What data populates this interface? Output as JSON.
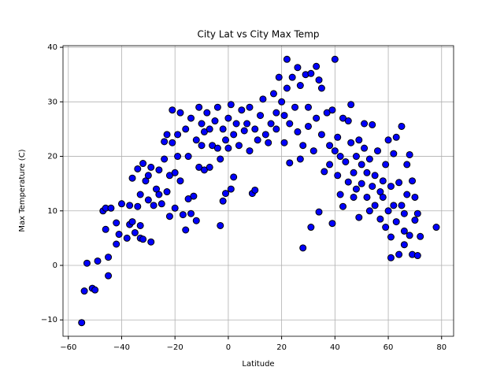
{
  "chart_data": {
    "type": "scatter",
    "title": "City Lat vs City Max Temp",
    "xlabel": "Latitude",
    "ylabel": "Max Temperature (C)",
    "color": "#0000ff",
    "edgecolor": "#000000",
    "grid": true,
    "xlim": [
      -62,
      84.5
    ],
    "ylim": [
      -13,
      40.3
    ],
    "xticks": [
      {
        "value": -60,
        "label": "−60"
      },
      {
        "value": -40,
        "label": "−40"
      },
      {
        "value": -20,
        "label": "−20"
      },
      0,
      20,
      40,
      60,
      80
    ],
    "yticks": [
      {
        "value": -10,
        "label": "−10"
      },
      0,
      10,
      20,
      30,
      40
    ],
    "x": [
      -55,
      -54,
      -53,
      -51,
      -50,
      -49,
      -47,
      -46,
      -46,
      -45,
      -45,
      -44,
      -42,
      -42,
      -41,
      -40,
      -38,
      -37,
      -37,
      -36,
      -36,
      -35,
      -34,
      -34,
      -33,
      -33,
      -33,
      -32,
      -32,
      -31,
      -30,
      -30,
      -29,
      -29,
      -28,
      -27,
      -26,
      -26,
      -25,
      -24,
      -24,
      -23,
      -23,
      -22,
      -22,
      -21,
      -21,
      -20,
      -20,
      -19,
      -19,
      -18,
      -18,
      -17,
      -16,
      -16,
      -15,
      -15,
      -14,
      -14,
      -13,
      -12,
      -12,
      -11,
      -11,
      -10,
      -10,
      -9,
      -9,
      -8,
      -7,
      -7,
      -6,
      -5,
      -4,
      -4,
      -3,
      -3,
      -2,
      -2,
      -1,
      -1,
      0,
      0,
      1,
      1,
      2,
      2,
      3,
      4,
      5,
      6,
      7,
      8,
      8,
      9,
      10,
      10,
      11,
      12,
      13,
      14,
      15,
      16,
      17,
      18,
      18,
      19,
      20,
      21,
      21,
      22,
      22,
      23,
      23,
      24,
      25,
      26,
      26,
      27,
      27,
      28,
      28,
      29,
      30,
      30,
      31,
      31,
      32,
      33,
      33,
      34,
      34,
      35,
      35,
      36,
      37,
      38,
      38,
      39,
      39,
      40,
      40,
      41,
      41,
      42,
      42,
      43,
      43,
      44,
      45,
      45,
      46,
      46,
      47,
      47,
      48,
      48,
      49,
      49,
      50,
      50,
      51,
      51,
      52,
      52,
      53,
      53,
      54,
      54,
      55,
      55,
      56,
      57,
      57,
      58,
      58,
      59,
      59,
      60,
      60,
      61,
      61,
      61,
      62,
      62,
      63,
      63,
      64,
      64,
      65,
      65,
      66,
      66,
      66,
      67,
      67,
      68,
      68,
      69,
      69,
      70,
      70,
      71,
      71,
      72,
      78
    ],
    "values": [
      -10.5,
      -4.7,
      0.4,
      -4.2,
      -4.5,
      0.8,
      10,
      6.6,
      10.5,
      1.5,
      -1.9,
      10.5,
      3.9,
      7.8,
      5.7,
      11.3,
      5,
      11,
      7.5,
      8,
      16,
      6,
      17.7,
      10.8,
      13,
      7.3,
      5,
      4.8,
      18.7,
      15.5,
      12,
      16.5,
      4.3,
      18,
      11,
      14,
      13,
      17.5,
      11.3,
      19.5,
      22.7,
      24,
      13.5,
      16.5,
      9,
      22.5,
      28.5,
      17,
      10.5,
      20,
      24,
      28,
      15.5,
      9.3,
      6.5,
      25,
      20,
      12.2,
      27,
      9.5,
      12.7,
      23,
      8.2,
      29,
      18,
      26,
      22,
      24.5,
      17.5,
      28,
      25,
      18,
      22,
      26.5,
      29,
      21.5,
      7.3,
      19.5,
      25,
      11.8,
      13.2,
      23,
      27,
      21.5,
      14,
      29.5,
      24,
      16.2,
      26,
      22,
      28.5,
      24.7,
      26,
      29,
      21,
      13.2,
      13.8,
      25,
      23,
      27.5,
      30.5,
      24,
      22.5,
      26,
      31.5,
      25,
      28,
      34.5,
      30,
      22.5,
      27.5,
      32.5,
      37.8,
      18.8,
      26,
      34.5,
      29,
      36.3,
      24.5,
      19.5,
      33,
      3.2,
      22,
      35,
      29,
      25.5,
      7,
      35.2,
      21,
      36.5,
      27,
      9.8,
      34,
      32.5,
      24,
      17.2,
      28,
      18.5,
      22,
      7.7,
      28.5,
      37.8,
      21,
      23.5,
      16.5,
      20,
      13,
      27,
      10.8,
      19,
      15.3,
      26.5,
      22.5,
      29.5,
      17,
      12.5,
      20,
      14,
      8.8,
      23,
      18.5,
      15,
      26,
      21.5,
      17,
      12.5,
      19.5,
      10,
      14.5,
      25.8,
      16.5,
      11,
      21,
      13.5,
      8.5,
      15.5,
      12.5,
      7,
      18.5,
      10,
      23,
      1.4,
      5.2,
      14.5,
      11,
      20.5,
      23.5,
      8,
      2,
      15.2,
      25.5,
      11,
      6.3,
      3.8,
      9.5,
      18.5,
      13,
      20.3,
      5.5,
      15.5,
      2,
      8.3,
      12.5,
      9.5,
      1.8,
      5.3,
      7
    ]
  }
}
